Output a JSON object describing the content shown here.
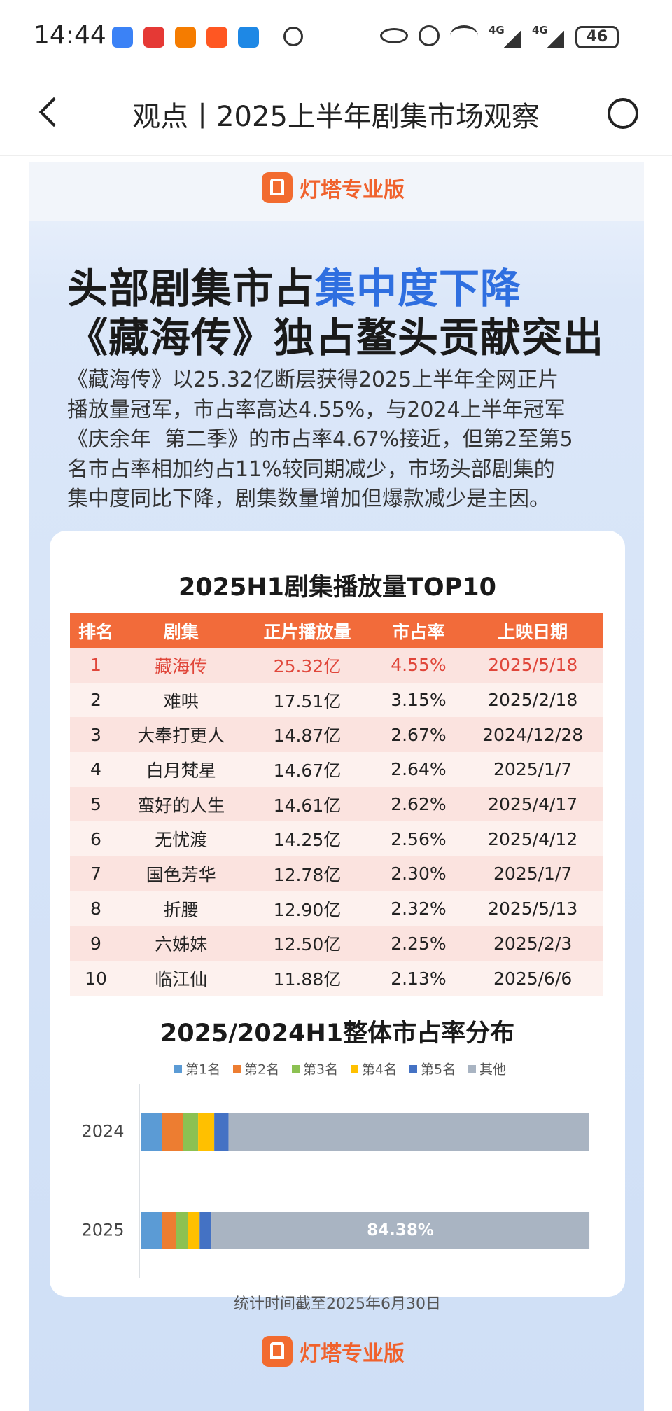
{
  "status_bar": {
    "time": "14:44",
    "network": [
      "4G",
      "4G"
    ],
    "battery": "46"
  },
  "nav": {
    "title": "观点丨2025上半年剧集市场观察"
  },
  "brand": "灯塔专业版",
  "headline": {
    "line1_plain": "头部剧集市占",
    "line1_highlight": "集中度下降",
    "line2": "《藏海传》独占鳌头贡献突出"
  },
  "summary": [
    "《藏海传》以25.32亿断层获得2025上半年全网正片",
    "播放量冠军，市占率高达4.55%，与2024上半年冠军",
    "《庆余年  第二季》的市占率4.67%接近，但第2至第5",
    "名市占率相加约占11%较同期减少，市场头部剧集的",
    "集中度同比下降，剧集数量增加但爆款减少是主因。"
  ],
  "table": {
    "title": "2025H1剧集播放量TOP10",
    "headers": [
      "排名",
      "剧集",
      "正片播放量",
      "市占率",
      "上映日期"
    ],
    "rows": [
      [
        "1",
        "藏海传",
        "25.32亿",
        "4.55%",
        "2025/5/18"
      ],
      [
        "2",
        "难哄",
        "17.51亿",
        "3.15%",
        "2025/2/18"
      ],
      [
        "3",
        "大奉打更人",
        "14.87亿",
        "2.67%",
        "2024/12/28"
      ],
      [
        "4",
        "白月梵星",
        "14.67亿",
        "2.64%",
        "2025/1/7"
      ],
      [
        "5",
        "蛮好的人生",
        "14.61亿",
        "2.62%",
        "2025/4/17"
      ],
      [
        "6",
        "无忧渡",
        "14.25亿",
        "2.56%",
        "2025/4/12"
      ],
      [
        "7",
        "国色芳华",
        "12.78亿",
        "2.30%",
        "2025/1/7"
      ],
      [
        "8",
        "折腰",
        "12.90亿",
        "2.32%",
        "2025/5/13"
      ],
      [
        "9",
        "六姊妹",
        "12.50亿",
        "2.25%",
        "2025/2/3"
      ],
      [
        "10",
        "临江仙",
        "11.88亿",
        "2.13%",
        "2025/6/6"
      ]
    ]
  },
  "chart_data": {
    "type": "stacked_hbar",
    "title": "2025/2024H1整体市占率分布",
    "categories": [
      "2024",
      "2025"
    ],
    "xlim": [
      0,
      100
    ],
    "series": [
      {
        "name": "第1名",
        "color": "#5b9bd5",
        "values": [
          4.67,
          4.55
        ]
      },
      {
        "name": "第2名",
        "color": "#ed7d31",
        "values": [
          4.6,
          3.15
        ]
      },
      {
        "name": "第3名",
        "color": "#8cc152",
        "values": [
          3.4,
          2.67
        ]
      },
      {
        "name": "第4名",
        "color": "#ffc000",
        "values": [
          3.6,
          2.64
        ]
      },
      {
        "name": "第5名",
        "color": "#4472c4",
        "values": [
          3.2,
          2.62
        ]
      },
      {
        "name": "其他",
        "color": "#a9b4c2",
        "values": [
          80.53,
          84.38
        ],
        "value_labels": [
          null,
          "84.38%"
        ]
      }
    ]
  },
  "footnote": "统计时间截至2025年6月30日"
}
